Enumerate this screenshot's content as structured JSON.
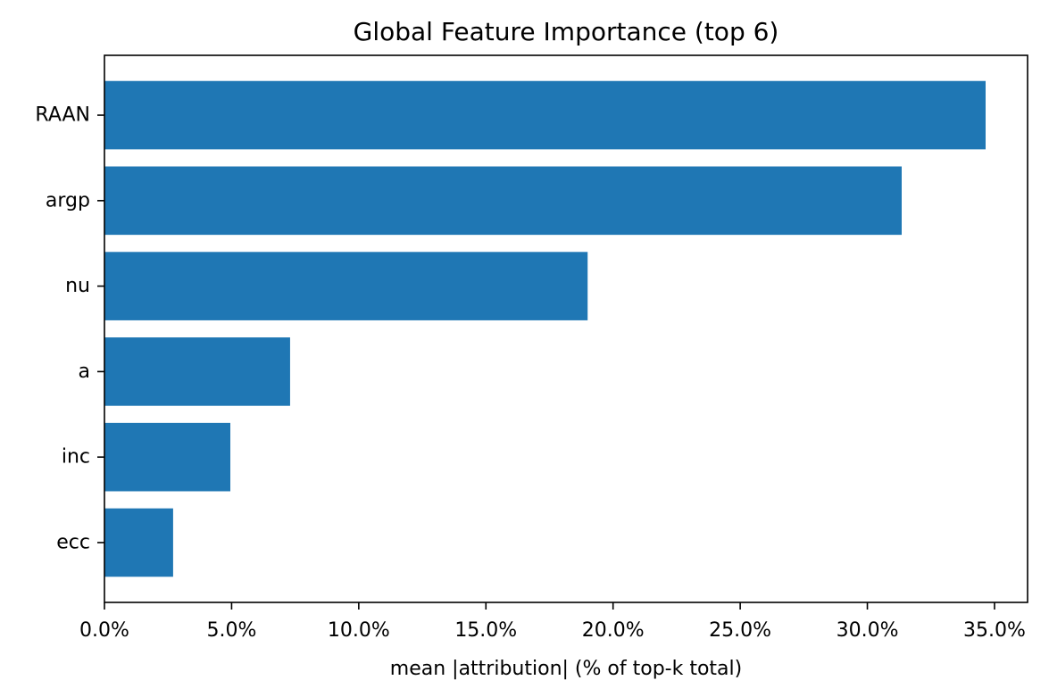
{
  "chart_data": {
    "type": "bar",
    "orientation": "horizontal",
    "title": "Global Feature Importance (top 6)",
    "xlabel": "mean |attribution| (% of top-k total)",
    "ylabel": "",
    "categories": [
      "RAAN",
      "argp",
      "nu",
      "a",
      "inc",
      "ecc"
    ],
    "values": [
      34.65,
      31.35,
      19.0,
      7.3,
      4.95,
      2.7
    ],
    "xlim": [
      0,
      36.3
    ],
    "xticks": [
      0,
      5,
      10,
      15,
      20,
      25,
      30,
      35
    ],
    "xtick_labels": [
      "0.0%",
      "5.0%",
      "10.0%",
      "15.0%",
      "20.0%",
      "25.0%",
      "30.0%",
      "35.0%"
    ],
    "grid": false,
    "bar_color": "#1f77b4"
  }
}
